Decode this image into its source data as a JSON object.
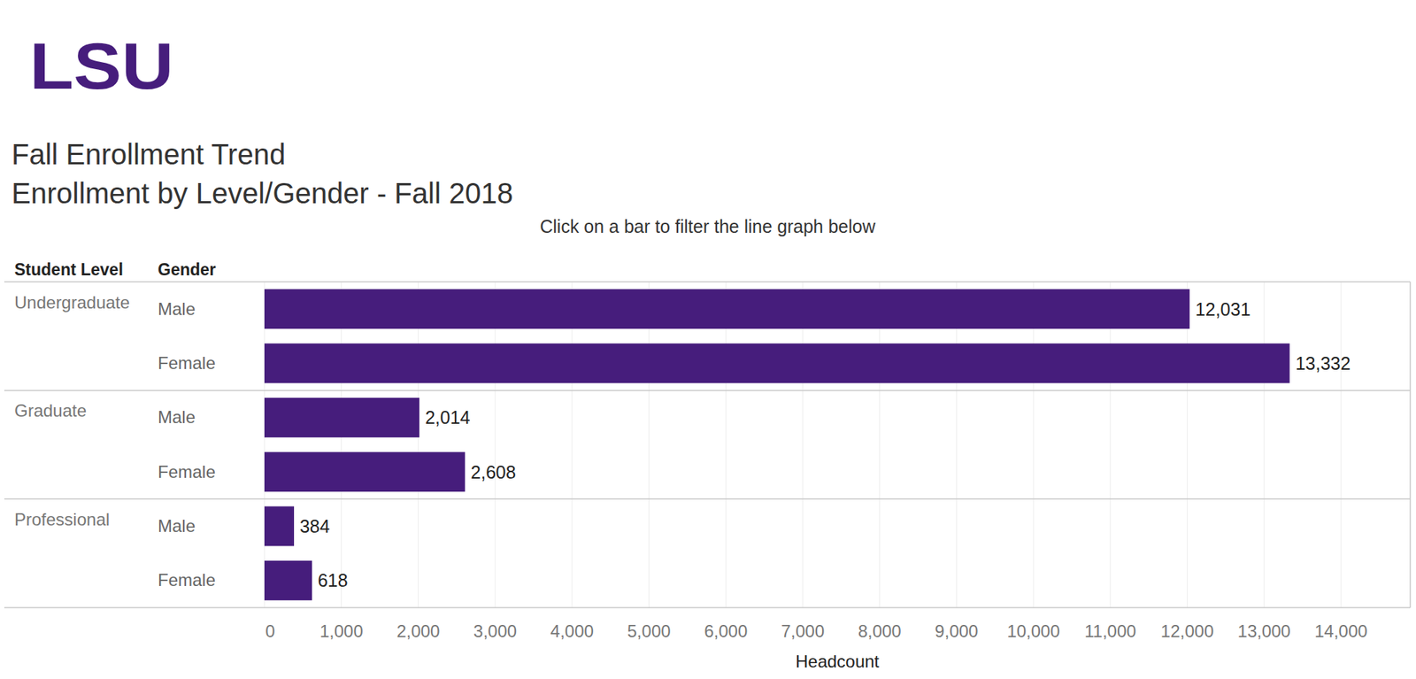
{
  "logo": "LSU",
  "chart_data": {
    "type": "bar",
    "orientation": "horizontal",
    "title": "Fall Enrollment Trend",
    "subtitle": "Enrollment by Level/Gender - Fall 2018",
    "annotations": [
      "Click on a bar to filter the line graph below"
    ],
    "ylabel": [
      "Student Level",
      "Gender"
    ],
    "xlabel": "Headcount",
    "levels": [
      "Undergraduate",
      "Undergraduate",
      "Graduate",
      "Graduate",
      "Professional",
      "Professional"
    ],
    "categories": [
      "Male",
      "Female",
      "Male",
      "Female",
      "Male",
      "Female"
    ],
    "values": [
      12031,
      13332,
      2014,
      2608,
      384,
      618
    ],
    "value_labels": [
      "12,031",
      "13,332",
      "2,014",
      "2,608",
      "384",
      "618"
    ],
    "color": "#461d7c",
    "xlim": [
      0,
      14900
    ],
    "xticks": [
      0,
      {
        "value": 1000,
        "label": "1,000"
      },
      {
        "value": 2000,
        "label": "2,000"
      },
      {
        "value": 3000,
        "label": "3,000"
      },
      {
        "value": 4000,
        "label": "4,000"
      },
      {
        "value": 5000,
        "label": "5,000"
      },
      {
        "value": 6000,
        "label": "6,000"
      },
      {
        "value": 7000,
        "label": "7,000"
      },
      {
        "value": 8000,
        "label": "8,000"
      },
      {
        "value": 9000,
        "label": "9,000"
      },
      {
        "value": 10000,
        "label": "10,000"
      },
      {
        "value": 11000,
        "label": "11,000"
      },
      {
        "value": 12000,
        "label": "12,000"
      },
      {
        "value": 13000,
        "label": "13,000"
      },
      {
        "value": 14000,
        "label": "14,000"
      }
    ],
    "grid": true,
    "data_labels": true
  }
}
